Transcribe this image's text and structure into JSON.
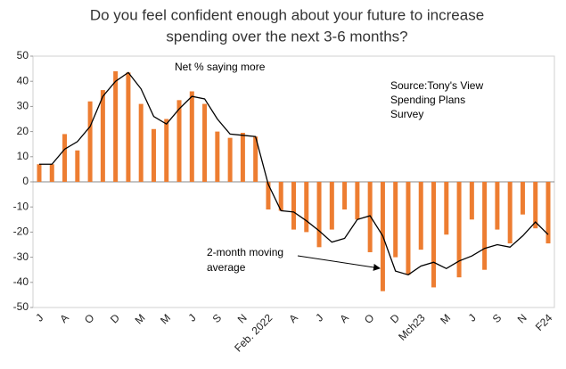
{
  "chart_data": {
    "type": "bar",
    "title": [
      "Do you feel confident enough about your future to increase",
      "spending over the next 3-6 months?"
    ],
    "categories": [
      "J",
      null,
      "A",
      null,
      "O",
      null,
      "D",
      null,
      "M",
      null,
      "M",
      null,
      "J",
      null,
      "S",
      null,
      "N",
      null,
      "Feb. 2022",
      null,
      "A",
      null,
      "J",
      null,
      "A",
      null,
      "O",
      null,
      "D",
      null,
      "Mch23",
      null,
      "M",
      null,
      "J",
      null,
      "S",
      null,
      "N",
      null,
      "F24"
    ],
    "series": [
      {
        "type": "bar",
        "color": "#ED7D31",
        "values": [
          7,
          7,
          19,
          12.5,
          32,
          36.5,
          44,
          43.5,
          31,
          21,
          25,
          32.5,
          36,
          31,
          20,
          17.5,
          19.5,
          18,
          -11,
          -11.5,
          -19,
          -20,
          -26,
          -19,
          -11,
          -15,
          -28,
          -43.5,
          -30,
          -37,
          -27,
          -42,
          -21,
          -38,
          -15,
          -35,
          -19,
          -24.5,
          -13,
          -18.5,
          -24.5
        ]
      },
      {
        "type": "line",
        "color": "#000000",
        "values": [
          7,
          7,
          13,
          16,
          22,
          34,
          40,
          43.5,
          37,
          26,
          23,
          29,
          34,
          33,
          25,
          19,
          18.5,
          18,
          -1,
          -11.5,
          -12,
          -15.5,
          -19.5,
          -24,
          -22.5,
          -15,
          -13.5,
          -21.5,
          -35.5,
          -37,
          -33.5,
          -32,
          -34.5,
          -31.5,
          -29.5,
          -26.5,
          -25,
          -26,
          -21.5,
          -16,
          -21
        ]
      }
    ],
    "annotations": [
      {
        "lines": [
          "Net % saying more"
        ]
      },
      {
        "lines": [
          "Source:Tony's View",
          "Spending Plans",
          "Survey"
        ]
      },
      {
        "lines": [
          "2-month moving",
          "average"
        ]
      }
    ],
    "ylim": [
      -50,
      50
    ],
    "yticks": [
      -50,
      -40,
      -30,
      -20,
      -10,
      0,
      10,
      20,
      30,
      40,
      50
    ],
    "grid": false
  }
}
